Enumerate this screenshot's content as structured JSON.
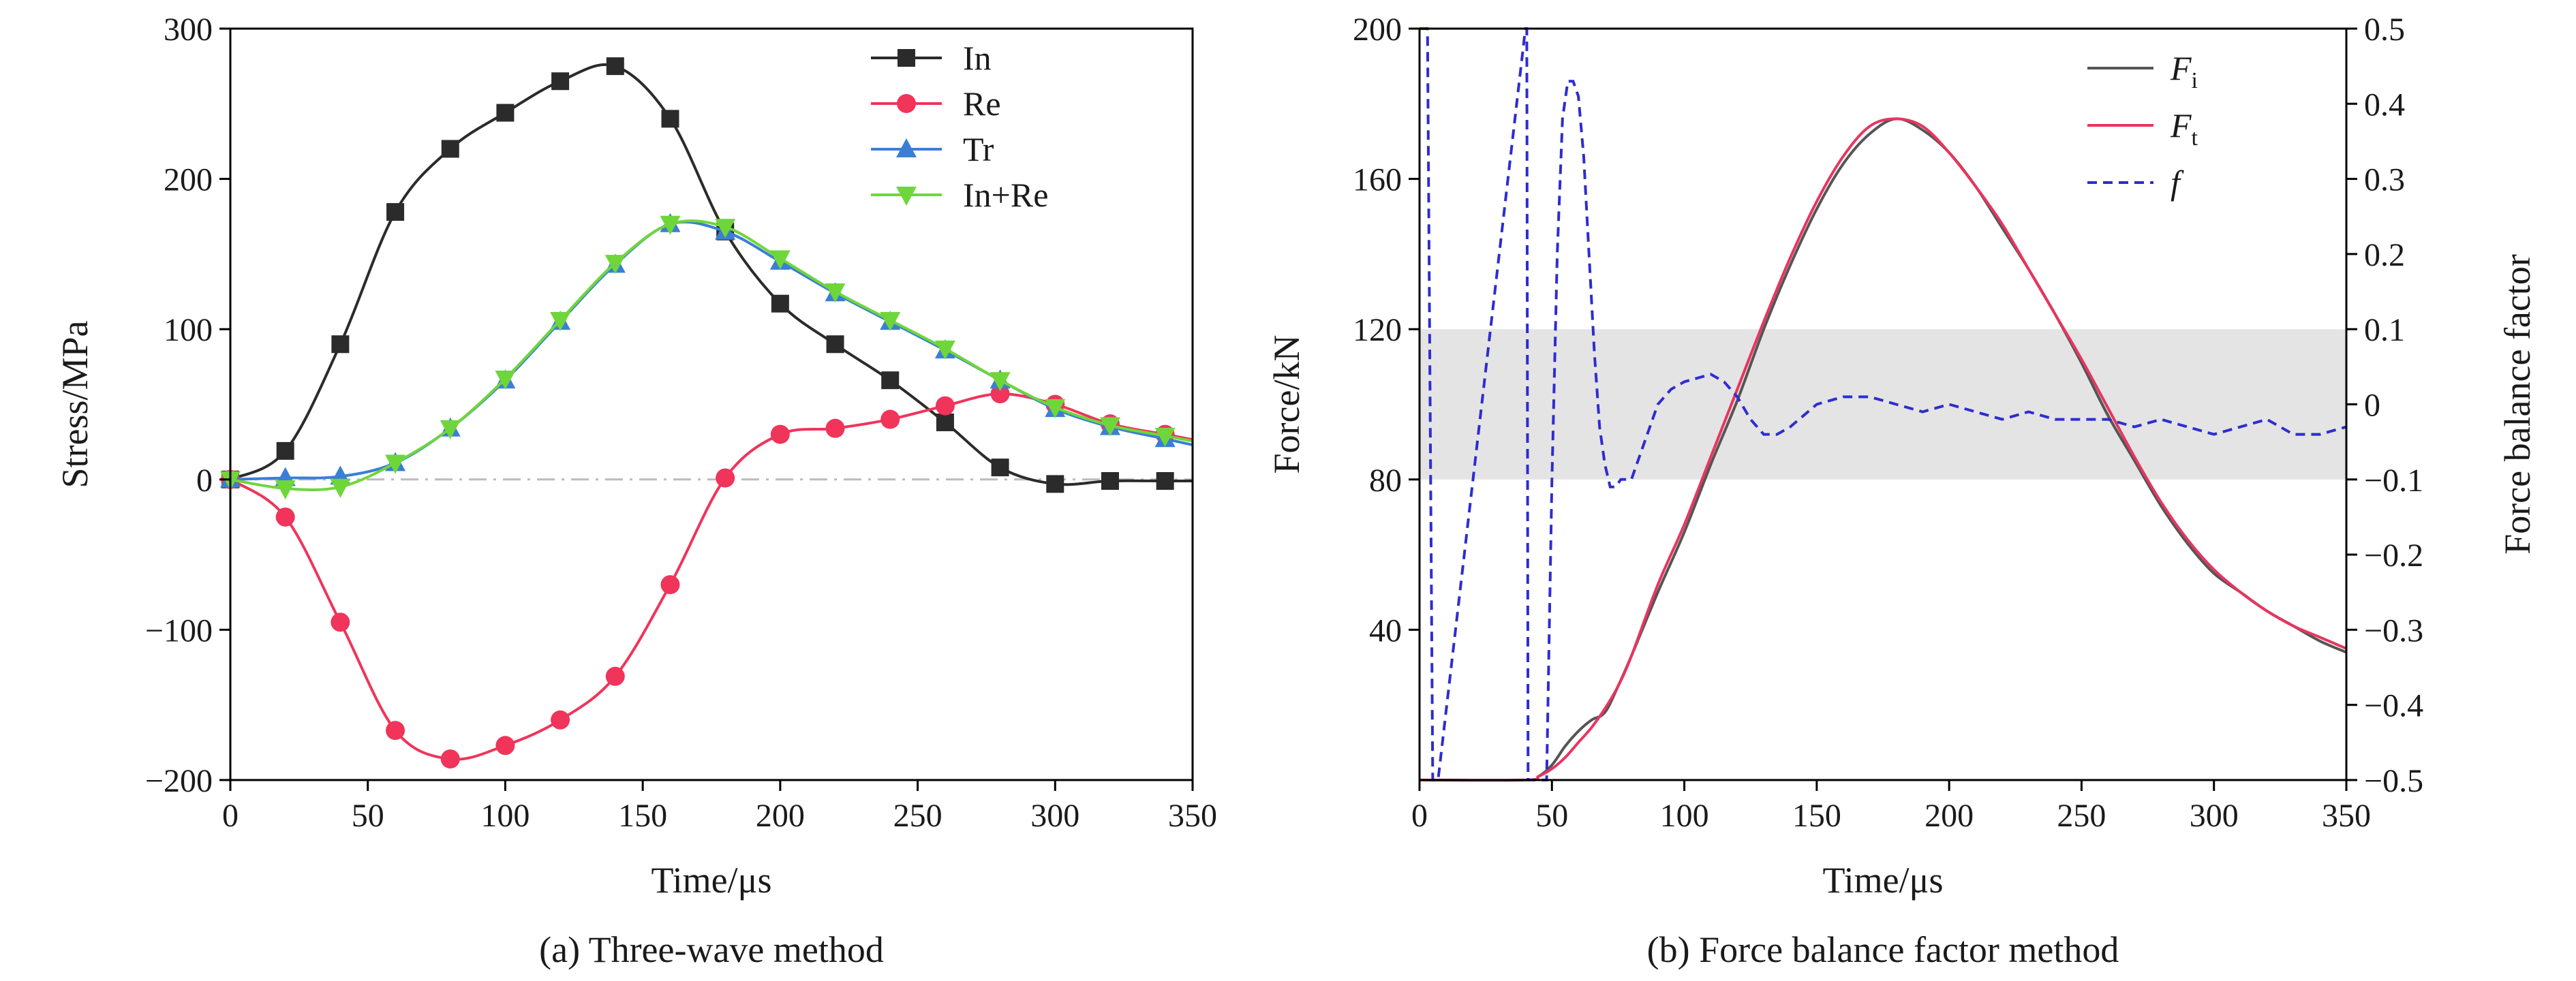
{
  "charts": [
    {
      "caption": "(a) Three-wave method",
      "chart_data": {
        "type": "line",
        "xlabel": "Time/μs",
        "ylabel": "Stress/MPa",
        "xlim": [
          0,
          350
        ],
        "ylim": [
          -200,
          300
        ],
        "xticks": [
          "0",
          "50",
          "100",
          "150",
          "200",
          "250",
          "300",
          "350"
        ],
        "yticks": [
          "−200",
          "−100",
          "0",
          "100",
          "200",
          "300"
        ],
        "legend_position": "top-right",
        "series": [
          {
            "name": "In",
            "color": "#2b2b2b",
            "marker": "square",
            "x": [
              0,
              20,
              40,
              60,
              80,
              100,
              120,
              140,
              160,
              180,
              200,
              220,
              240,
              260,
              280,
              300,
              320,
              340
            ],
            "y": [
              0,
              19,
              90,
              178,
              220,
              244,
              265,
              275,
              240,
              165,
              117,
              90,
              66,
              38,
              8,
              -3,
              -1,
              -1
            ]
          },
          {
            "name": "Re",
            "color": "#f0345a",
            "marker": "circle",
            "x": [
              0,
              20,
              40,
              60,
              80,
              100,
              120,
              140,
              160,
              180,
              200,
              220,
              240,
              260,
              280,
              300,
              320,
              340
            ],
            "y": [
              0,
              -25,
              -95,
              -167,
              -186,
              -177,
              -160,
              -131,
              -70,
              1,
              30,
              34,
              40,
              49,
              57,
              50,
              37,
              30
            ]
          },
          {
            "name": "Tr",
            "color": "#3a7fd5",
            "marker": "triangle-up",
            "x": [
              0,
              20,
              40,
              60,
              80,
              100,
              120,
              140,
              160,
              180,
              200,
              220,
              240,
              260,
              280,
              300,
              320,
              340
            ],
            "y": [
              0,
              1,
              2,
              11,
              34,
              66,
              105,
              143,
              170,
              165,
              145,
              124,
              105,
              86,
              66,
              47,
              35,
              27
            ]
          },
          {
            "name": "In+Re",
            "color": "#6fd63a",
            "marker": "triangle-down",
            "x": [
              0,
              20,
              40,
              60,
              80,
              100,
              120,
              140,
              160,
              180,
              200,
              220,
              240,
              260,
              280,
              300,
              320,
              340
            ],
            "y": [
              0,
              -6,
              -5,
              11,
              34,
              67,
              106,
              144,
              170,
              168,
              147,
              125,
              106,
              87,
              66,
              48,
              36,
              29
            ]
          }
        ]
      }
    },
    {
      "caption": "(b) Force balance factor method",
      "chart_data": {
        "type": "line",
        "xlabel": "Time/μs",
        "ylabel": "Force/kN",
        "ylabel_right": "Force balance factor",
        "xlim": [
          0,
          350
        ],
        "ylim": [
          0,
          200
        ],
        "ylim_right": [
          -0.5,
          0.5
        ],
        "xticks": [
          "0",
          "50",
          "100",
          "150",
          "200",
          "250",
          "300",
          "350"
        ],
        "yticks": [
          "40",
          "80",
          "120",
          "160",
          "200"
        ],
        "yticks_right": [
          "−0.5",
          "−0.4",
          "−0.3",
          "−0.2",
          "−0.1",
          "0",
          "0.1",
          "0.2",
          "0.3",
          "0.4",
          "0.5"
        ],
        "shaded_band_right": [
          -0.1,
          0.1
        ],
        "legend_position": "top-right",
        "series": [
          {
            "name": "F",
            "name_subscript": "i",
            "color": "#555555",
            "axis": "left",
            "x": [
              0,
              40,
              45,
              50,
              55,
              60,
              65,
              70,
              75,
              80,
              90,
              100,
              110,
              120,
              130,
              140,
              150,
              160,
              170,
              180,
              190,
              200,
              210,
              220,
              230,
              240,
              250,
              260,
              270,
              280,
              290,
              300,
              310,
              320,
              330,
              340,
              350
            ],
            "y": [
              0,
              0,
              1,
              4,
              9,
              13,
              16,
              18,
              25,
              33,
              50,
              66,
              84,
              101,
              120,
              137,
              152,
              164,
              172,
              176,
              173,
              167,
              158,
              147,
              136,
              124,
              111,
              97,
              85,
              73,
              63,
              55,
              50,
              45,
              41,
              37,
              34
            ]
          },
          {
            "name": "F",
            "name_subscript": "t",
            "color": "#e8355f",
            "axis": "left",
            "x": [
              0,
              40,
              45,
              50,
              55,
              60,
              65,
              70,
              75,
              80,
              90,
              100,
              110,
              120,
              130,
              140,
              150,
              160,
              170,
              180,
              190,
              200,
              210,
              220,
              230,
              240,
              250,
              260,
              270,
              280,
              290,
              300,
              310,
              320,
              330,
              340,
              350
            ],
            "y": [
              0,
              0,
              1,
              3,
              6,
              10,
              14,
              19,
              25,
              33,
              52,
              68,
              86,
              104,
              122,
              139,
              154,
              166,
              174,
              176,
              174,
              167,
              158,
              148,
              136,
              124,
              112,
              99,
              86,
              74,
              64,
              56,
              50,
              45,
              41,
              38,
              35
            ]
          },
          {
            "name": "f",
            "color": "#2d2dd0",
            "dash": true,
            "axis": "right",
            "x": [
              0,
              3,
              5,
              6,
              7,
              40,
              40.5,
              41,
              42,
              44,
              46,
              48,
              50,
              52,
              54,
              56,
              58,
              60,
              62,
              64,
              66,
              68,
              70,
              72,
              74,
              76,
              78,
              80,
              85,
              90,
              95,
              100,
              105,
              110,
              115,
              120,
              125,
              130,
              135,
              140,
              150,
              160,
              170,
              180,
              190,
              200,
              210,
              220,
              230,
              240,
              250,
              260,
              270,
              280,
              290,
              300,
              310,
              320,
              330,
              340,
              350
            ],
            "y": [
              0.5,
              0.5,
              -0.5,
              -0.5,
              -0.5,
              0.5,
              0.5,
              -0.5,
              -0.5,
              -0.5,
              -0.5,
              -0.5,
              -0.1,
              0.2,
              0.38,
              0.43,
              0.43,
              0.41,
              0.33,
              0.2,
              0.07,
              -0.03,
              -0.08,
              -0.11,
              -0.11,
              -0.1,
              -0.1,
              -0.1,
              -0.05,
              0.0,
              0.02,
              0.03,
              0.035,
              0.04,
              0.03,
              0.01,
              -0.02,
              -0.04,
              -0.04,
              -0.03,
              0.0,
              0.01,
              0.01,
              0.0,
              -0.01,
              0.0,
              -0.01,
              -0.02,
              -0.01,
              -0.02,
              -0.02,
              -0.02,
              -0.03,
              -0.02,
              -0.03,
              -0.04,
              -0.03,
              -0.02,
              -0.04,
              -0.04,
              -0.03
            ]
          }
        ]
      }
    }
  ]
}
